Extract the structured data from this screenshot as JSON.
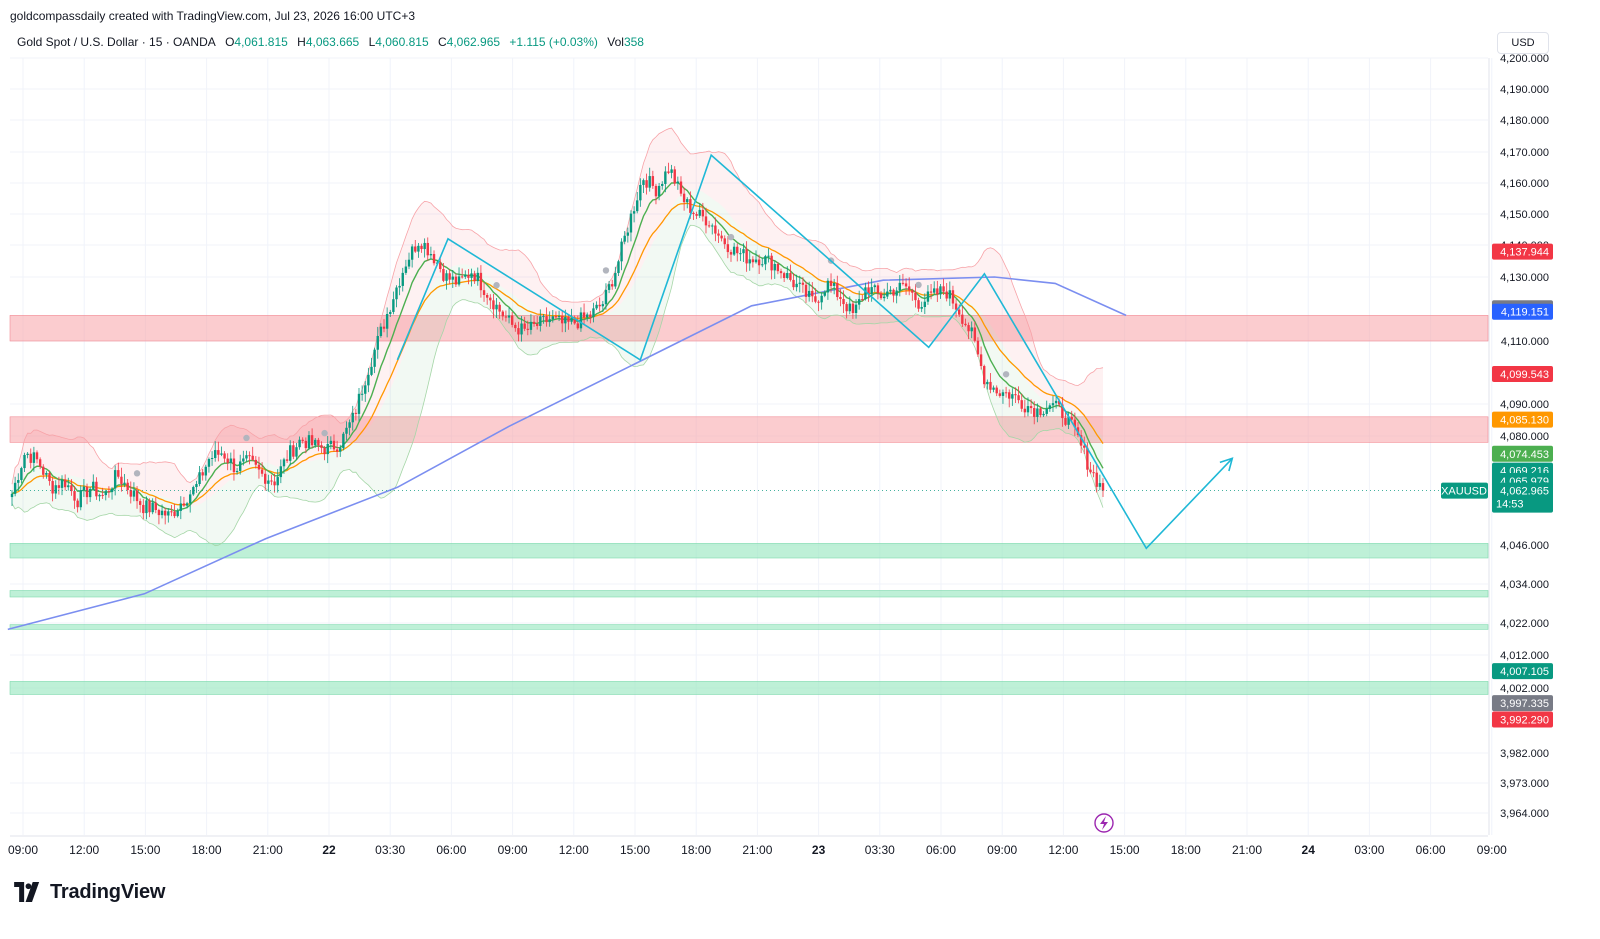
{
  "header": {
    "credit": "goldcompassdaily created with TradingView.com, Jul 23, 2026 16:00 UTC+3"
  },
  "legend": {
    "symbol": "Gold Spot / U.S. Dollar · 15 · OANDA",
    "open_label": "O",
    "open": "4,061.815",
    "high_label": "H",
    "high": "4,063.665",
    "low_label": "L",
    "low": "4,060.815",
    "close_label": "C",
    "close": "4,062.965",
    "change": "+1.115 (+0.03%)",
    "vol_label": "Vol",
    "vol": "358"
  },
  "currency": "USD",
  "brand": {
    "name": "TradingView",
    "icon": "tradingview-logo-icon"
  },
  "colors": {
    "up": "#089981",
    "down": "#f23645",
    "zigzag": "#1fb8d6",
    "ma_fast": "#4caf50",
    "ma_mid": "#ff9800",
    "ma_slow": "#7b8ef0",
    "resistance_zone": "#f7a3a8",
    "support_zone": "#9be8c2"
  },
  "chart_data": {
    "type": "candlestick",
    "symbol": "XAUUSD",
    "timeframe": "15",
    "x_ticks": [
      "09:00",
      "12:00",
      "15:00",
      "18:00",
      "21:00",
      "22",
      "03:30",
      "06:00",
      "09:00",
      "12:00",
      "15:00",
      "18:00",
      "21:00",
      "23",
      "03:30",
      "06:00",
      "09:00",
      "12:00",
      "15:00",
      "18:00",
      "21:00",
      "24",
      "03:00",
      "06:00",
      "09:00"
    ],
    "x_tick_bold": [
      false,
      false,
      false,
      false,
      false,
      true,
      false,
      false,
      false,
      false,
      false,
      false,
      false,
      true,
      false,
      false,
      false,
      false,
      false,
      false,
      false,
      true,
      false,
      false,
      false
    ],
    "y_ticks": [
      "4,200.000",
      "4,190.000",
      "4,180.000",
      "4,170.000",
      "4,160.000",
      "4,150.000",
      "4,140.000",
      "4,130.000",
      "4,110.000",
      "4,090.000",
      "4,080.000",
      "4,046.000",
      "4,034.000",
      "4,022.000",
      "4,012.000",
      "4,002.000",
      "3,982.000",
      "3,973.000",
      "3,964.000"
    ],
    "y_tick_values": [
      4200,
      4190,
      4180,
      4170,
      4160,
      4150,
      4140,
      4130,
      4110,
      4090,
      4080,
      4046,
      4034,
      4022,
      4012,
      4002,
      3982,
      3973,
      3964
    ],
    "resistance_zones": [
      [
        4110,
        4118
      ],
      [
        4078,
        4086
      ]
    ],
    "support_zones": [
      [
        4042,
        4046.5
      ],
      [
        4030,
        4032
      ],
      [
        4020,
        4021.5
      ],
      [
        4000,
        4004
      ]
    ],
    "price_labels": [
      {
        "value": "4,137.944",
        "price": 4137.944,
        "color": "#f23645"
      },
      {
        "value": "4,120.231",
        "price": 4120.231,
        "color": "#787b86"
      },
      {
        "value": "4,119.151",
        "price": 4119.151,
        "color": "#2962ff"
      },
      {
        "value": "4,099.543",
        "price": 4099.543,
        "color": "#f23645"
      },
      {
        "value": "4,085.130",
        "price": 4085.13,
        "color": "#ff9800"
      },
      {
        "value": "4,074.453",
        "price": 4074.453,
        "color": "#4caf50"
      },
      {
        "value": "4,069.216",
        "price": 4069.216,
        "color": "#089981"
      },
      {
        "value": "4,065.979",
        "price": 4065.979,
        "color": "#089981"
      },
      {
        "value": "4,007.105",
        "price": 4007.105,
        "color": "#089981"
      },
      {
        "value": "3,997.335",
        "price": 3997.335,
        "color": "#787b86"
      },
      {
        "value": "3,992.290",
        "price": 3992.29,
        "color": "#f23645"
      }
    ],
    "last_price": {
      "value": "4,062.965",
      "price": 4062.965,
      "countdown": "14:53",
      "symbol_tag": "XAUUSD",
      "color": "#089981"
    },
    "zigzag_path": [
      {
        "t": "Jul 22 03:30",
        "price": 4104
      },
      {
        "t": "Jul 22 06:00",
        "price": 4142
      },
      {
        "t": "Jul 22 15:30",
        "price": 4104
      },
      {
        "t": "Jul 22 19:00",
        "price": 4169
      },
      {
        "t": "Jul 23 05:45",
        "price": 4108
      },
      {
        "t": "Jul 23 08:30",
        "price": 4131
      },
      {
        "t": "Jul 23 16:30",
        "price": 4045
      },
      {
        "t": "Jul 23 20:45",
        "price": 4073
      }
    ],
    "slow_ma": [
      {
        "t": "Jul 21 08:15",
        "price": 4020
      },
      {
        "t": "Jul 21 15:00",
        "price": 4031
      },
      {
        "t": "Jul 21 21:00",
        "price": 4048
      },
      {
        "t": "Jul 22 03:30",
        "price": 4064
      },
      {
        "t": "Jul 22 09:00",
        "price": 4083
      },
      {
        "t": "Jul 22 15:00",
        "price": 4102
      },
      {
        "t": "Jul 22 21:00",
        "price": 4121
      },
      {
        "t": "Jul 23 03:30",
        "price": 4129
      },
      {
        "t": "Jul 23 09:00",
        "price": 4130
      },
      {
        "t": "Jul 23 12:00",
        "price": 4128
      },
      {
        "t": "Jul 23 15:30",
        "price": 4118
      }
    ],
    "ohlc_path": [
      4062,
      4075,
      4072,
      4064,
      4066,
      4060,
      4064,
      4061,
      4068,
      4063,
      4058,
      4057,
      4055,
      4060,
      4064,
      4073,
      4075,
      4070,
      4072,
      4068,
      4066,
      4074,
      4079,
      4077,
      4076,
      4078,
      4086,
      4100,
      4112,
      4124,
      4135,
      4142,
      4137,
      4130,
      4128,
      4132,
      4126,
      4120,
      4115,
      4113,
      4115,
      4117,
      4115,
      4116,
      4118,
      4122,
      4133,
      4148,
      4162,
      4158,
      4165,
      4155,
      4150,
      4148,
      4142,
      4138,
      4136,
      4136,
      4134,
      4130,
      4126,
      4122,
      4128,
      4124,
      4118,
      4127,
      4124,
      4126,
      4127,
      4122,
      4124,
      4126,
      4120,
      4112,
      4098,
      4094,
      4093,
      4090,
      4088,
      4090,
      4087,
      4080,
      4070,
      4063
    ]
  }
}
